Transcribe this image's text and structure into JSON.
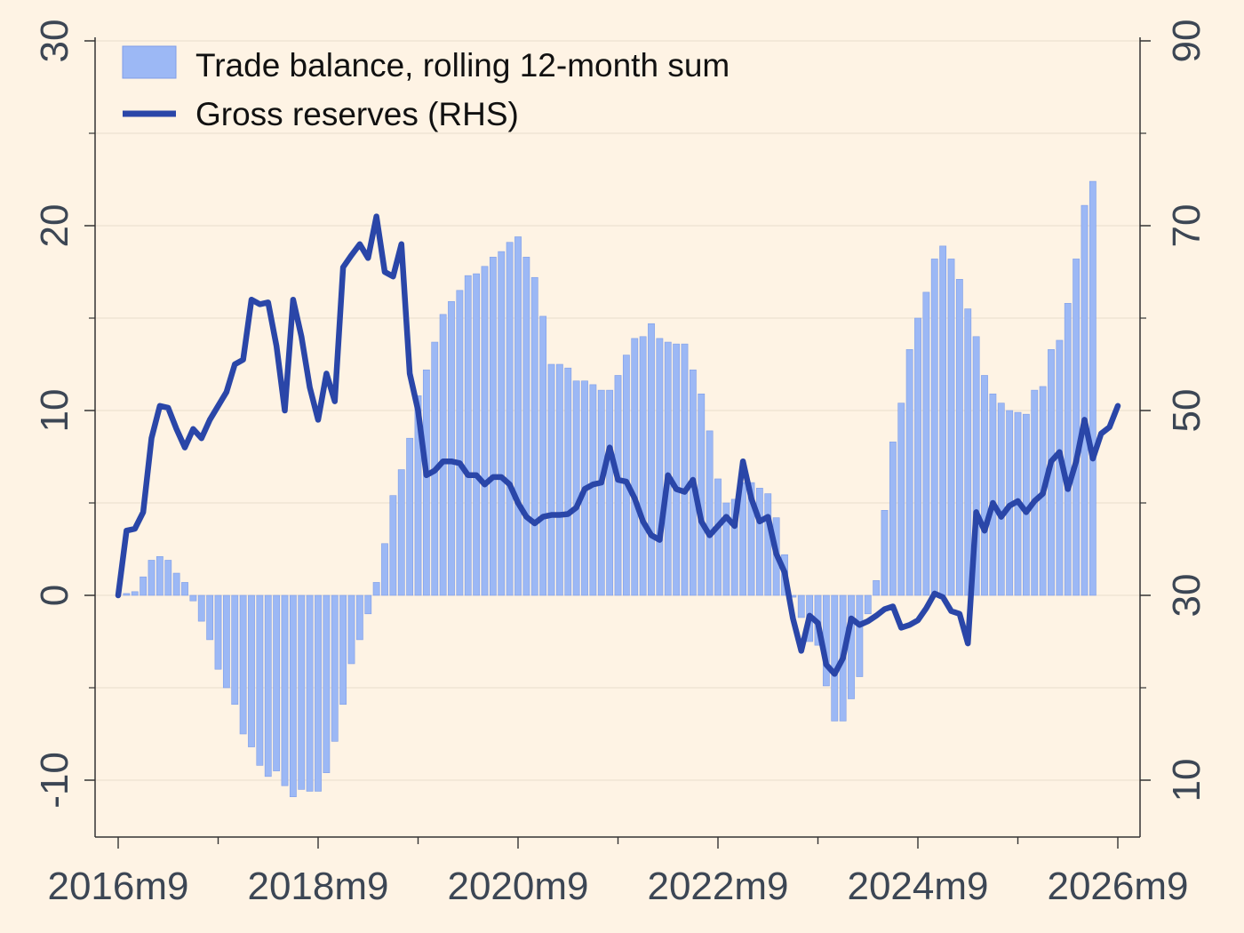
{
  "chart_data": {
    "type": "bar+line",
    "x_tick_labels": [
      "2016m9",
      "2018m9",
      "2020m9",
      "2022m9",
      "2024m9",
      "2026m9"
    ],
    "start_month": "2016m9",
    "left_axis": {
      "ylim": [
        -13,
        31
      ],
      "ticks": [
        "-10",
        "0",
        "10",
        "20",
        "30"
      ]
    },
    "right_axis": {
      "ylim": [
        4,
        92
      ],
      "ticks": [
        "10",
        "30",
        "50",
        "70",
        "90"
      ]
    },
    "grid": true,
    "legend_position": "top-left",
    "colors": {
      "background": "#fef3e4",
      "bar_fill": "#9cb8f5",
      "bar_stroke": "#7f9ee8",
      "line": "#2a46a8",
      "axis": "#333333",
      "grid": "#e8dccb"
    },
    "series": [
      {
        "name": "Trade balance, rolling 12-month sum",
        "kind": "bar",
        "axis": "left",
        "values": [
          0.1,
          0.2,
          1.0,
          1.9,
          2.1,
          1.9,
          1.2,
          0.7,
          -0.3,
          -1.4,
          -2.4,
          -4.0,
          -5.0,
          -5.9,
          -7.5,
          -8.2,
          -9.2,
          -9.8,
          -9.5,
          -10.3,
          -10.9,
          -10.5,
          -10.6,
          -10.6,
          -9.6,
          -7.9,
          -5.9,
          -3.7,
          -2.4,
          -1.0,
          0.7,
          2.8,
          5.4,
          6.8,
          8.5,
          10.8,
          12.2,
          13.7,
          15.2,
          15.9,
          16.5,
          17.3,
          17.4,
          17.8,
          18.3,
          18.6,
          19.1,
          19.4,
          18.3,
          17.2,
          15.1,
          12.5,
          12.5,
          12.3,
          11.6,
          11.6,
          11.4,
          11.1,
          11.1,
          11.9,
          13.0,
          13.9,
          14.0,
          14.7,
          13.9,
          13.7,
          13.6,
          13.6,
          12.2,
          10.9,
          8.9,
          6.3,
          5.0,
          5.2,
          6.1,
          6.1,
          5.8,
          5.5,
          4.2,
          2.2,
          -0.1,
          -1.2,
          -2.5,
          -2.7,
          -4.9,
          -6.8,
          -6.8,
          -5.6,
          -4.4,
          -1.0,
          0.8,
          4.6,
          8.3,
          10.4,
          13.3,
          15.0,
          16.4,
          18.2,
          18.9,
          18.2,
          17.1,
          15.5,
          14.0,
          11.9,
          10.9,
          10.4,
          10.0,
          9.9,
          9.8,
          11.1,
          11.3,
          13.3,
          13.8,
          15.8,
          18.2,
          21.1,
          22.4
        ]
      },
      {
        "name": "Gross reserves (RHS)",
        "kind": "line",
        "axis": "right",
        "values": [
          30.0,
          37.0,
          37.2,
          39.0,
          47.0,
          50.5,
          50.3,
          48.0,
          46.0,
          48.0,
          47.0,
          49.0,
          50.5,
          52.0,
          55.0,
          55.5,
          62.0,
          61.5,
          61.7,
          57.0,
          50.0,
          62.0,
          58.0,
          52.5,
          49.0,
          54.0,
          51.0,
          65.5,
          66.8,
          68.0,
          66.5,
          71.0,
          65.0,
          64.5,
          68.0,
          54.0,
          50.0,
          43.0,
          43.5,
          44.5,
          44.5,
          44.3,
          43.0,
          43.0,
          42.0,
          42.8,
          42.8,
          42.0,
          40.0,
          38.5,
          37.8,
          38.5,
          38.7,
          38.7,
          38.8,
          39.5,
          41.5,
          42.0,
          42.2,
          46.0,
          42.5,
          42.3,
          40.5,
          38.0,
          36.5,
          36.0,
          43.0,
          41.5,
          41.2,
          42.5,
          38.0,
          36.5,
          37.5,
          38.5,
          37.5,
          44.5,
          40.5,
          38.0,
          38.5,
          34.5,
          32.5,
          27.5,
          24.0,
          27.8,
          27.0,
          22.5,
          21.5,
          23.2,
          27.5,
          26.8,
          27.2,
          27.8,
          28.5,
          28.8,
          26.5,
          26.8,
          27.3,
          28.6,
          30.2,
          29.8,
          28.3,
          28.0,
          24.8,
          39.0,
          37.0,
          40.0,
          38.5,
          39.7,
          40.2,
          39.0,
          40.2,
          41.0,
          44.5,
          45.5,
          41.5,
          44.5,
          49.0,
          44.8,
          47.5,
          48.2,
          50.5
        ]
      }
    ]
  }
}
